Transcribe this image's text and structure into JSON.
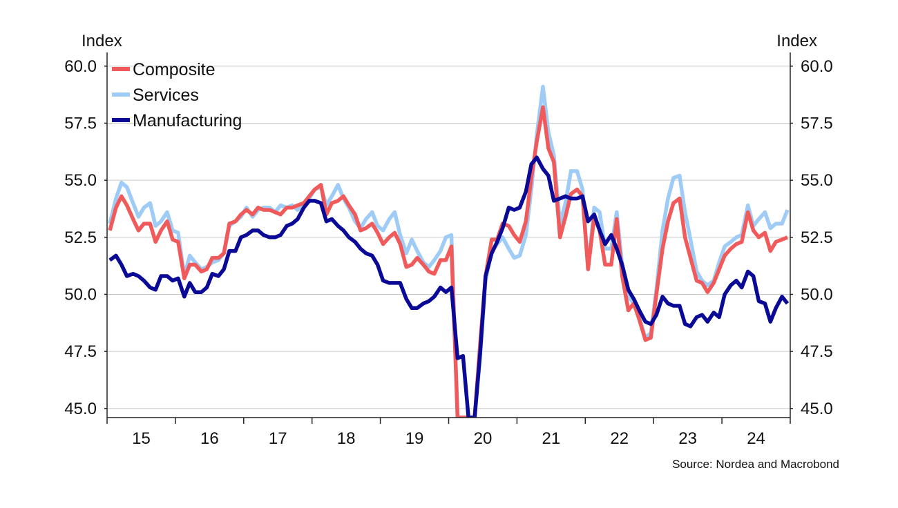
{
  "chart_data": {
    "type": "line",
    "y_left_label": "Index",
    "y_right_label": "Index",
    "ylim": [
      44.6,
      60.6
    ],
    "yticks": [
      45.0,
      47.5,
      50.0,
      52.5,
      55.0,
      57.5,
      60.0
    ],
    "ytick_labels": [
      "45.0",
      "47.5",
      "50.0",
      "52.5",
      "55.0",
      "57.5",
      "60.0"
    ],
    "x_range": [
      2015.0,
      2025.0
    ],
    "x_tick_years": [
      15,
      16,
      17,
      18,
      19,
      20,
      21,
      22,
      23,
      24
    ],
    "x_tick_labels": [
      "15",
      "16",
      "17",
      "18",
      "19",
      "20",
      "21",
      "22",
      "23",
      "24"
    ],
    "grid": "horizontal",
    "legend_position": "top-left",
    "source": "Source: Nordea and Macrobond",
    "series": [
      {
        "name": "Composite",
        "color": "#f05a5a",
        "x": [
          2015.04,
          2015.13,
          2015.21,
          2015.29,
          2015.38,
          2015.46,
          2015.54,
          2015.63,
          2015.71,
          2015.79,
          2015.88,
          2015.96,
          2016.04,
          2016.13,
          2016.21,
          2016.29,
          2016.38,
          2016.46,
          2016.54,
          2016.63,
          2016.71,
          2016.79,
          2016.88,
          2016.96,
          2017.04,
          2017.13,
          2017.21,
          2017.29,
          2017.38,
          2017.46,
          2017.54,
          2017.63,
          2017.71,
          2017.79,
          2017.88,
          2017.96,
          2018.04,
          2018.13,
          2018.21,
          2018.29,
          2018.38,
          2018.46,
          2018.54,
          2018.63,
          2018.71,
          2018.79,
          2018.88,
          2018.96,
          2019.04,
          2019.13,
          2019.21,
          2019.29,
          2019.38,
          2019.46,
          2019.54,
          2019.63,
          2019.71,
          2019.79,
          2019.88,
          2019.96,
          2020.04,
          2020.13,
          2020.21,
          2020.29,
          2020.38,
          2020.46,
          2020.54,
          2020.63,
          2020.71,
          2020.79,
          2020.88,
          2020.96,
          2021.04,
          2021.13,
          2021.21,
          2021.29,
          2021.38,
          2021.46,
          2021.54,
          2021.63,
          2021.71,
          2021.79,
          2021.88,
          2021.96,
          2022.04,
          2022.13,
          2022.21,
          2022.29,
          2022.38,
          2022.46,
          2022.54,
          2022.63,
          2022.71,
          2022.79,
          2022.88,
          2022.96,
          2023.04,
          2023.13,
          2023.21,
          2023.29,
          2023.38,
          2023.46,
          2023.54,
          2023.63,
          2023.71,
          2023.79,
          2023.88,
          2023.96,
          2024.04,
          2024.13,
          2024.21,
          2024.29,
          2024.38,
          2024.46,
          2024.54,
          2024.63,
          2024.71,
          2024.79,
          2024.88,
          2024.96
        ],
        "values": [
          52.8,
          53.8,
          54.3,
          53.9,
          53.3,
          52.8,
          53.1,
          53.1,
          52.3,
          52.8,
          53.2,
          52.4,
          52.3,
          50.7,
          51.3,
          51.3,
          51.0,
          51.1,
          51.6,
          51.6,
          51.8,
          53.1,
          53.2,
          53.5,
          53.7,
          53.5,
          53.8,
          53.7,
          53.7,
          53.6,
          53.5,
          53.8,
          53.8,
          53.9,
          54.0,
          54.3,
          54.6,
          54.8,
          53.5,
          54.0,
          54.1,
          54.3,
          53.9,
          53.5,
          52.8,
          52.9,
          53.1,
          52.7,
          52.2,
          52.5,
          52.7,
          52.2,
          51.2,
          51.3,
          51.6,
          51.3,
          51.0,
          50.9,
          51.5,
          51.5,
          52.1,
          44.6,
          44.6,
          44.6,
          44.6,
          47.8,
          50.8,
          52.4,
          52.4,
          53.1,
          53.0,
          52.6,
          52.3,
          53.2,
          55.1,
          56.7,
          58.2,
          56.4,
          55.8,
          52.5,
          53.4,
          54.4,
          54.6,
          54.3,
          51.1,
          53.4,
          52.8,
          51.3,
          51.3,
          53.3,
          50.8,
          49.3,
          49.6,
          48.9,
          48.0,
          48.1,
          50.0,
          52.0,
          53.2,
          54.0,
          54.2,
          52.5,
          51.6,
          50.6,
          50.5,
          50.1,
          50.5,
          51.1,
          51.7,
          52.0,
          52.2,
          52.3,
          53.6,
          52.8,
          52.5,
          52.7,
          51.9,
          52.3,
          52.4,
          52.5
        ]
      },
      {
        "name": "Services",
        "color": "#9fccf6",
        "x": [
          2015.04,
          2015.13,
          2015.21,
          2015.29,
          2015.38,
          2015.46,
          2015.54,
          2015.63,
          2015.71,
          2015.79,
          2015.88,
          2015.96,
          2016.04,
          2016.13,
          2016.21,
          2016.29,
          2016.38,
          2016.46,
          2016.54,
          2016.63,
          2016.71,
          2016.79,
          2016.88,
          2016.96,
          2017.04,
          2017.13,
          2017.21,
          2017.29,
          2017.38,
          2017.46,
          2017.54,
          2017.63,
          2017.71,
          2017.79,
          2017.88,
          2017.96,
          2018.04,
          2018.13,
          2018.21,
          2018.29,
          2018.38,
          2018.46,
          2018.54,
          2018.63,
          2018.71,
          2018.79,
          2018.88,
          2018.96,
          2019.04,
          2019.13,
          2019.21,
          2019.29,
          2019.38,
          2019.46,
          2019.54,
          2019.63,
          2019.71,
          2019.79,
          2019.88,
          2019.96,
          2020.04,
          2020.13,
          2020.21,
          2020.29,
          2020.38,
          2020.46,
          2020.54,
          2020.63,
          2020.71,
          2020.79,
          2020.88,
          2020.96,
          2021.04,
          2021.13,
          2021.21,
          2021.29,
          2021.38,
          2021.46,
          2021.54,
          2021.63,
          2021.71,
          2021.79,
          2021.88,
          2021.96,
          2022.04,
          2022.13,
          2022.21,
          2022.29,
          2022.38,
          2022.46,
          2022.54,
          2022.63,
          2022.71,
          2022.79,
          2022.88,
          2022.96,
          2023.04,
          2023.13,
          2023.21,
          2023.29,
          2023.38,
          2023.46,
          2023.54,
          2023.63,
          2023.71,
          2023.79,
          2023.88,
          2023.96,
          2024.04,
          2024.13,
          2024.21,
          2024.29,
          2024.38,
          2024.46,
          2024.54,
          2024.63,
          2024.71,
          2024.79,
          2024.88,
          2024.96
        ],
        "values": [
          53.1,
          54.2,
          54.9,
          54.7,
          54.0,
          53.4,
          53.8,
          54.0,
          53.0,
          53.2,
          53.6,
          52.8,
          52.7,
          50.8,
          51.7,
          51.4,
          51.1,
          51.2,
          51.4,
          51.5,
          51.8,
          53.0,
          53.2,
          53.4,
          53.8,
          53.4,
          53.7,
          53.8,
          53.8,
          53.6,
          53.9,
          53.8,
          53.9,
          53.7,
          54.0,
          54.2,
          54.6,
          54.7,
          53.9,
          54.3,
          54.8,
          54.2,
          53.8,
          53.2,
          52.9,
          53.3,
          53.6,
          53.0,
          52.8,
          53.3,
          53.6,
          52.6,
          51.8,
          52.4,
          51.9,
          51.4,
          51.2,
          51.5,
          51.9,
          52.5,
          52.6,
          44.6,
          44.6,
          44.6,
          44.6,
          47.2,
          50.6,
          51.9,
          52.2,
          52.5,
          52.0,
          51.6,
          51.7,
          52.6,
          54.6,
          57.0,
          59.1,
          57.1,
          56.1,
          53.1,
          54.0,
          55.4,
          55.4,
          54.6,
          51.1,
          53.8,
          53.6,
          52.0,
          52.0,
          53.6,
          51.3,
          49.9,
          49.6,
          49.0,
          48.1,
          48.3,
          50.2,
          52.8,
          54.2,
          55.1,
          55.2,
          53.6,
          52.4,
          51.0,
          50.6,
          50.4,
          50.6,
          51.4,
          52.1,
          52.3,
          52.5,
          52.6,
          53.9,
          53.0,
          53.3,
          53.6,
          52.9,
          53.1,
          53.1,
          53.7
        ]
      },
      {
        "name": "Manufacturing",
        "color": "#0a0a96",
        "x": [
          2015.04,
          2015.13,
          2015.21,
          2015.29,
          2015.38,
          2015.46,
          2015.54,
          2015.63,
          2015.71,
          2015.79,
          2015.88,
          2015.96,
          2016.04,
          2016.13,
          2016.21,
          2016.29,
          2016.38,
          2016.46,
          2016.54,
          2016.63,
          2016.71,
          2016.79,
          2016.88,
          2016.96,
          2017.04,
          2017.13,
          2017.21,
          2017.29,
          2017.38,
          2017.46,
          2017.54,
          2017.63,
          2017.71,
          2017.79,
          2017.88,
          2017.96,
          2018.04,
          2018.13,
          2018.21,
          2018.29,
          2018.38,
          2018.46,
          2018.54,
          2018.63,
          2018.71,
          2018.79,
          2018.88,
          2018.96,
          2019.04,
          2019.13,
          2019.21,
          2019.29,
          2019.38,
          2019.46,
          2019.54,
          2019.63,
          2019.71,
          2019.79,
          2019.88,
          2019.96,
          2020.04,
          2020.13,
          2020.21,
          2020.29,
          2020.38,
          2020.46,
          2020.54,
          2020.63,
          2020.71,
          2020.79,
          2020.88,
          2020.96,
          2021.04,
          2021.13,
          2021.21,
          2021.29,
          2021.38,
          2021.46,
          2021.54,
          2021.63,
          2021.71,
          2021.79,
          2021.88,
          2021.96,
          2022.04,
          2022.13,
          2022.21,
          2022.29,
          2022.38,
          2022.46,
          2022.54,
          2022.63,
          2022.71,
          2022.79,
          2022.88,
          2022.96,
          2023.04,
          2023.13,
          2023.21,
          2023.29,
          2023.38,
          2023.46,
          2023.54,
          2023.63,
          2023.71,
          2023.79,
          2023.88,
          2023.96,
          2024.04,
          2024.13,
          2024.21,
          2024.29,
          2024.38,
          2024.46,
          2024.54,
          2024.63,
          2024.71,
          2024.79,
          2024.88,
          2024.96
        ],
        "values": [
          51.5,
          51.7,
          51.3,
          50.8,
          50.9,
          50.8,
          50.6,
          50.3,
          50.2,
          50.8,
          50.8,
          50.6,
          50.7,
          49.9,
          50.5,
          50.1,
          50.1,
          50.3,
          50.9,
          50.8,
          51.1,
          51.9,
          51.9,
          52.5,
          52.6,
          52.8,
          52.8,
          52.6,
          52.5,
          52.5,
          52.6,
          53.0,
          53.1,
          53.3,
          53.8,
          54.1,
          54.1,
          54.0,
          53.2,
          53.3,
          53.0,
          52.8,
          52.5,
          52.3,
          52.0,
          51.8,
          51.7,
          51.3,
          50.6,
          50.5,
          50.5,
          50.5,
          49.8,
          49.4,
          49.4,
          49.6,
          49.7,
          49.9,
          50.3,
          50.1,
          50.3,
          47.2,
          47.3,
          44.6,
          44.6,
          47.4,
          50.8,
          51.8,
          52.3,
          52.9,
          53.8,
          53.7,
          53.8,
          54.5,
          55.7,
          56.0,
          55.5,
          55.2,
          54.1,
          54.2,
          54.3,
          54.2,
          54.2,
          54.3,
          53.2,
          53.5,
          52.8,
          52.2,
          52.6,
          52.0,
          51.3,
          50.2,
          49.8,
          49.3,
          48.8,
          48.7,
          49.1,
          49.9,
          49.6,
          49.5,
          49.5,
          48.7,
          48.6,
          49.0,
          49.1,
          48.8,
          49.2,
          49.0,
          50.0,
          50.4,
          50.6,
          50.3,
          51.0,
          50.8,
          49.7,
          49.6,
          48.8,
          49.4,
          49.9,
          49.6
        ]
      }
    ]
  }
}
